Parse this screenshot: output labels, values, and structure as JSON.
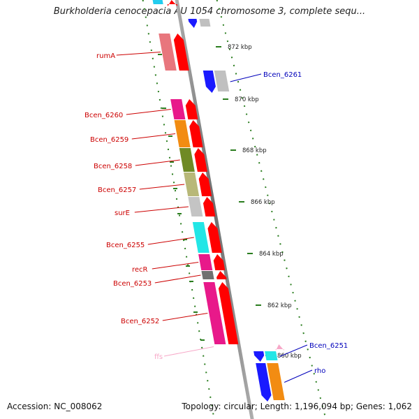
{
  "header": {
    "title": "Burkholderia cenocepacia AU 1054 chromosome 3, complete sequ..."
  },
  "footer": {
    "accession": "Accession: NC_008062",
    "stats": "Topology: circular; Length: 1,196,094 bp; Genes: 1,062"
  },
  "scale": {
    "unit": "kbp",
    "ticks": [
      "872 kbp",
      "870 kbp",
      "868 kbp",
      "866 kbp",
      "864 kbp",
      "862 kbp",
      "860 kbp"
    ]
  },
  "genes_reverse": [
    {
      "label": "rumA",
      "color": "#e8767d"
    },
    {
      "label": "Bcen_6260",
      "color": "#e8198a"
    },
    {
      "label": "Bcen_6259",
      "color": "#f28c12"
    },
    {
      "label": "Bcen_6258",
      "color": "#6f8a25"
    },
    {
      "label": "Bcen_6257",
      "color": "#b8b878"
    },
    {
      "label": "surE",
      "color": "#c4c4c4"
    },
    {
      "label": "Bcen_6255",
      "color": "#22e6e6"
    },
    {
      "label": "recR",
      "color": "#e8198a"
    },
    {
      "label": "Bcen_6253",
      "color": "#707070"
    },
    {
      "label": "Bcen_6252",
      "color": "#e8198a"
    },
    {
      "label": "ffs",
      "color": "#f7a8c8"
    }
  ],
  "genes_forward": [
    {
      "label": "Bcen_6261",
      "color": "#c0c0c0"
    },
    {
      "label": "Bcen_6251",
      "color": "#22e6e6"
    },
    {
      "label": "rho",
      "color": "#f28c12"
    }
  ],
  "colors": {
    "cds_arrow": "#ff0000",
    "reverse_label": "#cc0000",
    "forward_label": "#0000bb",
    "rna_label": "#f7a8c8",
    "tick": "#2a7d1e",
    "backbone": "#808080",
    "forward_marker": "#1a1aff"
  }
}
